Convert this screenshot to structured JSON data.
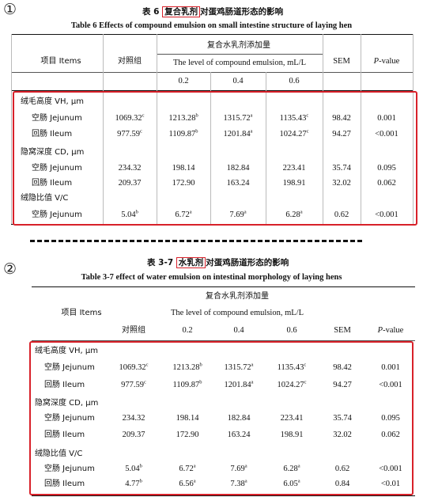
{
  "colors": {
    "highlight": "#d8212a",
    "text": "#111111"
  },
  "t1": {
    "marker": "①",
    "cn_prefix": "表 6 ",
    "cn_highlight": "复合乳剂",
    "cn_suffix": "对蛋鸡肠道形态的影响",
    "en": "Table 6 Effects of compound emulsion on small intestine structure of laying hen",
    "h_items": "项目 Items",
    "h_control": "对照组",
    "h_group_cn": "复合水乳剂添加量",
    "h_group_en": "The level of compound emulsion, mL/L",
    "h_levels": [
      "0.2",
      "0.4",
      "0.6"
    ],
    "h_sem": "SEM",
    "h_p": "P",
    "h_p_suffix": "-value",
    "sec_vh": "绒毛高度 VH, μm",
    "sec_cd": "隐窝深度 CD, μm",
    "sec_vc": "绒隐比值 V/C",
    "rows": [
      {
        "label": "空肠 Jejunum",
        "c": "1069.32",
        "cs": "c",
        "a": "1213.28",
        "as": "b",
        "b": "1315.72",
        "bs": "a",
        "d": "1135.43",
        "ds": "c",
        "sem": "98.42",
        "p": "0.001"
      },
      {
        "label": "回肠 Ileum",
        "c": "977.59",
        "cs": "c",
        "a": "1109.87",
        "as": "b",
        "b": "1201.84",
        "bs": "a",
        "d": "1024.27",
        "ds": "c",
        "sem": "94.27",
        "p": "<0.001"
      },
      {
        "label": "空肠 Jejunum",
        "c": "234.32",
        "a": "198.14",
        "b": "182.84",
        "d": "223.41",
        "sem": "35.74",
        "p": "0.095"
      },
      {
        "label": "回肠 Ileum",
        "c": "209.37",
        "a": "172.90",
        "b": "163.24",
        "d": "198.91",
        "sem": "32.02",
        "p": "0.062"
      },
      {
        "label": "空肠 Jejunum",
        "c": "5.04",
        "cs": "b",
        "a": "6.72",
        "as": "a",
        "b": "7.69",
        "bs": "a",
        "d": "6.28",
        "ds": "a",
        "sem": "0.62",
        "p": "<0.001"
      }
    ]
  },
  "t2": {
    "marker": "②",
    "cn_prefix": "表 3-7 ",
    "cn_highlight": "水乳剂",
    "cn_suffix": "对蛋鸡肠道形态的影响",
    "en": "Table 3-7 effect of water emulsion on intestinal morphology of laying hens",
    "h_items": "项目 Items",
    "h_control": "对照组",
    "h_group_cn": "复合水乳剂添加量",
    "h_group_en": "The level of compound emulsion, mL/L",
    "h_levels": [
      "0.2",
      "0.4",
      "0.6"
    ],
    "h_sem": "SEM",
    "h_p": "P",
    "h_p_suffix": "-value",
    "sec_vh": "绒毛高度 VH, μm",
    "sec_cd": "隐窝深度 CD, μm",
    "sec_vc": "绒隐比值 V/C",
    "rows": [
      {
        "label": "空肠 Jejunum",
        "c": "1069.32",
        "cs": "c",
        "a": "1213.28",
        "as": "b",
        "b": "1315.72",
        "bs": "a",
        "d": "1135.43",
        "ds": "c",
        "sem": "98.42",
        "p": "0.001"
      },
      {
        "label": "回肠 Ileum",
        "c": "977.59",
        "cs": "c",
        "a": "1109.87",
        "as": "b",
        "b": "1201.84",
        "bs": "a",
        "d": "1024.27",
        "ds": "c",
        "sem": "94.27",
        "p": "<0.001"
      },
      {
        "label": "空肠 Jejunum",
        "c": "234.32",
        "a": "198.14",
        "b": "182.84",
        "d": "223.41",
        "sem": "35.74",
        "p": "0.095"
      },
      {
        "label": "回肠 Ileum",
        "c": "209.37",
        "a": "172.90",
        "b": "163.24",
        "d": "198.91",
        "sem": "32.02",
        "p": "0.062"
      },
      {
        "label": "空肠 Jejunum",
        "c": "5.04",
        "cs": "b",
        "a": "6.72",
        "as": "a",
        "b": "7.69",
        "bs": "a",
        "d": "6.28",
        "ds": "a",
        "sem": "0.62",
        "p": "<0.001"
      },
      {
        "label": "回肠 Ileum",
        "c": "4.77",
        "cs": "b",
        "a": "6.56",
        "as": "a",
        "b": "7.38",
        "bs": "a",
        "d": "6.05",
        "ds": "a",
        "sem": "0.84",
        "p": "<0.01"
      }
    ]
  }
}
